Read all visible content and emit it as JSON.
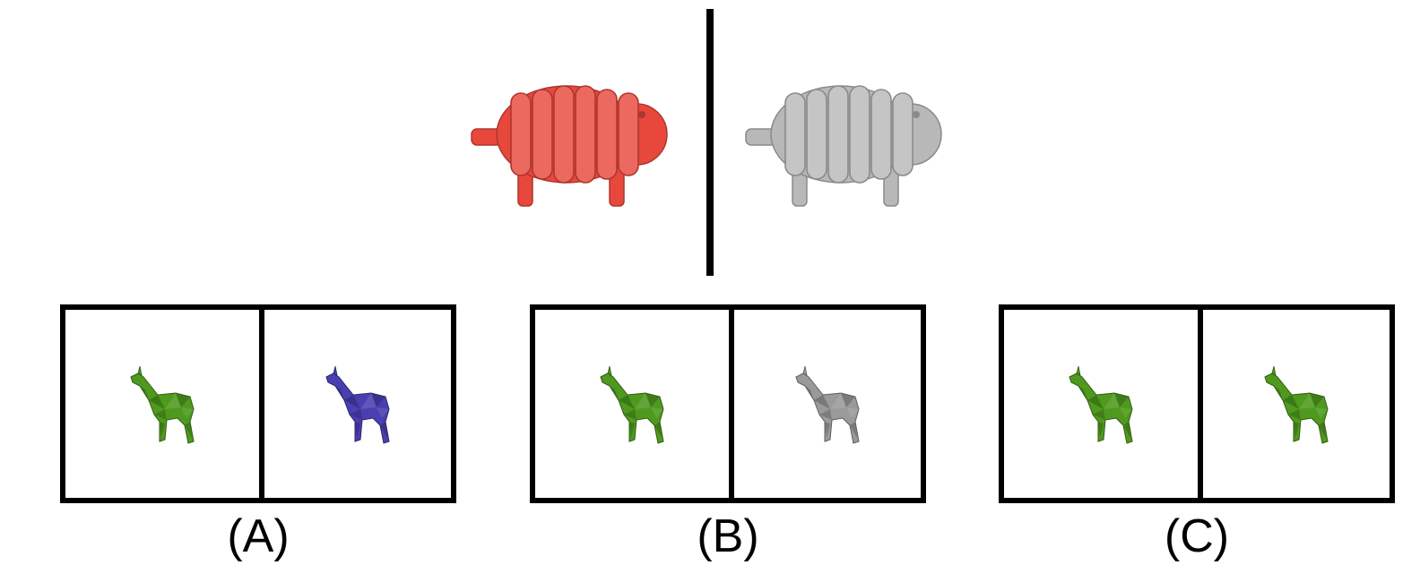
{
  "reference": {
    "left_object": {
      "name": "sheep",
      "color": "#e8483c"
    },
    "right_object": {
      "name": "sheep",
      "color": "#b8b8b8"
    }
  },
  "options": [
    {
      "label": "(A)",
      "left": {
        "name": "giraffe",
        "color": "#4f9a1e"
      },
      "right": {
        "name": "giraffe",
        "color": "#4a3fb0"
      }
    },
    {
      "label": "(B)",
      "left": {
        "name": "giraffe",
        "color": "#4f9a1e"
      },
      "right": {
        "name": "giraffe",
        "color": "#9a9a9a"
      }
    },
    {
      "label": "(C)",
      "left": {
        "name": "giraffe",
        "color": "#4f9a1e"
      },
      "right": {
        "name": "giraffe",
        "color": "#4f9a1e"
      }
    }
  ]
}
